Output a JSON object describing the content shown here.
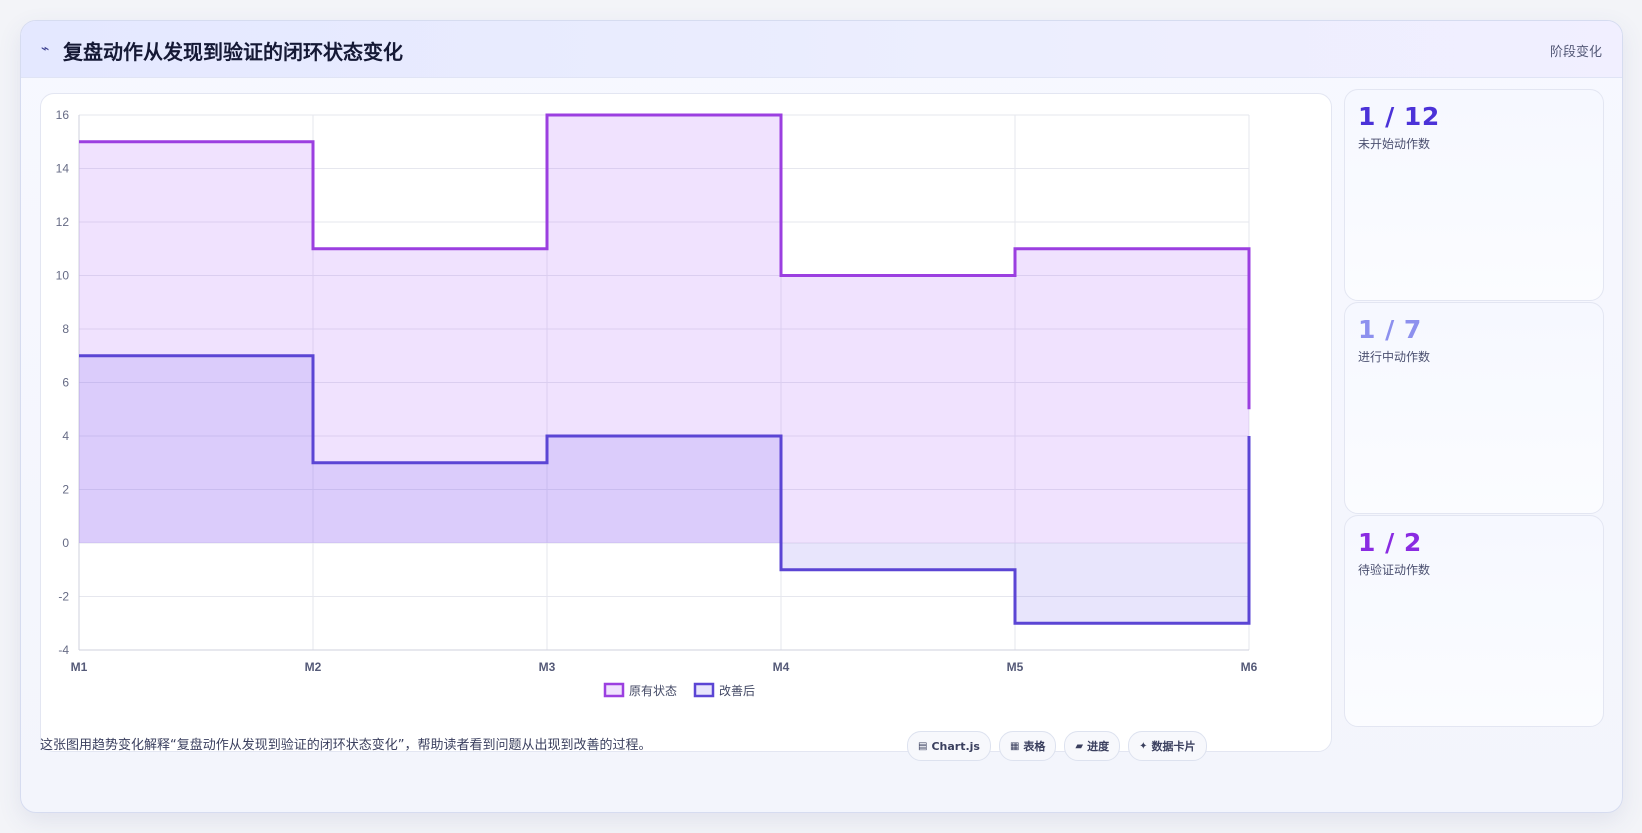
{
  "header": {
    "icon": "chart-line-icon",
    "icon_glyph": "⌁",
    "title": "复盘动作从发现到验证的闭环状态变化",
    "stage_label": "阶段变化"
  },
  "chart_data": {
    "type": "line",
    "stepped": true,
    "filled": true,
    "categories": [
      "M1",
      "M2",
      "M3",
      "M4",
      "M5",
      "M6"
    ],
    "series": [
      {
        "name": "原有状态",
        "values": [
          15,
          11,
          16,
          10,
          11,
          5
        ],
        "color": "#9b3fe0",
        "fill": "rgba(168,85,247,0.17)"
      },
      {
        "name": "改善后",
        "values": [
          7,
          3,
          4,
          -1,
          -3,
          4
        ],
        "color": "#5b45d4",
        "fill": "rgba(110,95,235,0.16)"
      }
    ],
    "ylim": [
      -4,
      16
    ],
    "yticks": [
      -4,
      -2,
      0,
      2,
      4,
      6,
      8,
      10,
      12,
      14,
      16
    ],
    "grid": true,
    "legend": "bottom"
  },
  "stats": [
    {
      "value": "1 / 12",
      "label": "未开始动作数",
      "color": "#4b32d8"
    },
    {
      "value": "1 / 7",
      "label": "进行中动作数",
      "color": "#8d90ee"
    },
    {
      "value": "1 / 2",
      "label": "待验证动作数",
      "color": "#8a2be2"
    }
  ],
  "footer": {
    "note": "这张图用趋势变化解释“复盘动作从发现到验证的闭环状态变化”，帮助读者看到问题从出现到改善的过程。",
    "chips": [
      {
        "icon": "chart-icon",
        "glyph": "▤",
        "label": "Chart.js"
      },
      {
        "icon": "table-icon",
        "glyph": "▦",
        "label": "表格"
      },
      {
        "icon": "progress-icon",
        "glyph": "▰",
        "label": "进度"
      },
      {
        "icon": "sparkle-icon",
        "glyph": "✦",
        "label": "数据卡片"
      }
    ]
  }
}
